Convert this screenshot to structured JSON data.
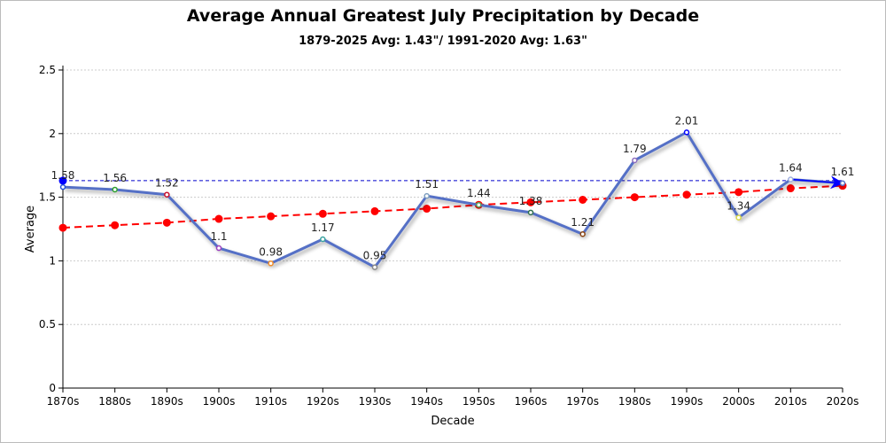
{
  "chart_data": {
    "type": "line",
    "title": "Average Annual Greatest July Precipitation by Decade",
    "subtitle": "1879-2025 Avg: 1.43\"/ 1991-2020 Avg: 1.63\"",
    "xlabel": "Decade",
    "ylabel": "Average",
    "ylim": [
      0,
      2.5
    ],
    "yticks": [
      "0",
      "0.5",
      "1",
      "1.5",
      "2",
      "2.5"
    ],
    "grid": true,
    "categories": [
      "1870s",
      "1880s",
      "1890s",
      "1900s",
      "1910s",
      "1920s",
      "1930s",
      "1940s",
      "1950s",
      "1960s",
      "1970s",
      "1980s",
      "1990s",
      "2000s",
      "2010s",
      "2020s"
    ],
    "series": [
      {
        "values": [
          1.58,
          1.56,
          1.52,
          1.1,
          0.98,
          1.17,
          0.95,
          1.51,
          1.44,
          1.38,
          1.21,
          1.79,
          2.01,
          1.34,
          1.64,
          1.61
        ],
        "color": "#5470c6",
        "marker_colors": [
          "#1f4fd8",
          "#2ca02c",
          "#c8102e",
          "#9b3fc0",
          "#f28e2b",
          "#3aa3a0",
          "#888888",
          "#7f9fbf",
          "#5aa05a",
          "#2f6f4f",
          "#8b4513",
          "#8e6fbf",
          "#0000ff",
          "#d8d84a",
          "#a0b0e0",
          "#5470c6"
        ]
      },
      {
        "type": "trend",
        "values": [
          1.26,
          1.28,
          1.3,
          1.33,
          1.35,
          1.37,
          1.39,
          1.41,
          1.44,
          1.46,
          1.48,
          1.5,
          1.52,
          1.54,
          1.57,
          1.59
        ],
        "color": "#ff0000",
        "dashed": true
      }
    ],
    "reference_line": {
      "value": 1.63,
      "color": "#0000cc",
      "dashed": true
    },
    "reference_markers": {
      "start_dot_color": "#0000ff",
      "end_arrow_color": "#0000ff"
    }
  }
}
